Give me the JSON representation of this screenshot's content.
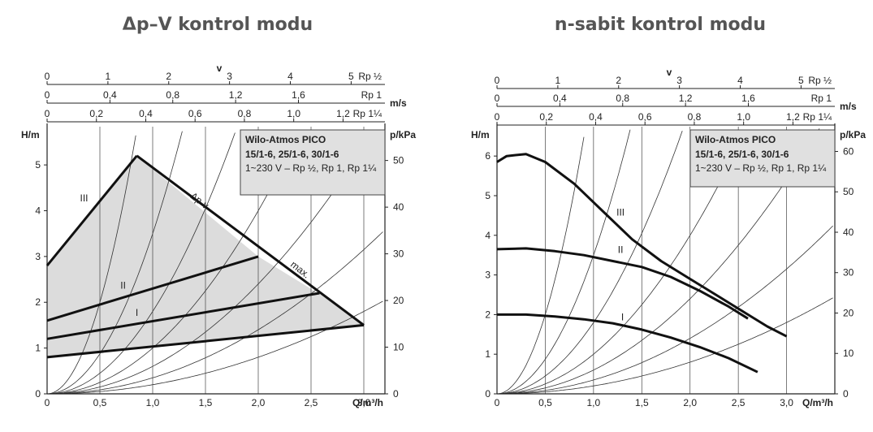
{
  "chart_data": [
    {
      "type": "line",
      "title": "Δp–V kontrol modu",
      "xlabel": "Q/m³/h",
      "ylabel": "H/m",
      "ylabel_right": "p/kPa",
      "x_ticks": [
        "0",
        "0,5",
        "1,0",
        "1,5",
        "2,0",
        "2,5",
        "3,0"
      ],
      "y_ticks": [
        "0",
        "1",
        "2",
        "3",
        "4",
        "5"
      ],
      "y_right_ticks": [
        "0",
        "10",
        "20",
        "30",
        "40",
        "50"
      ],
      "xlim": [
        0,
        3.2
      ],
      "ylim": [
        0,
        5.8
      ],
      "top_axes": [
        {
          "label": "Rp ½",
          "ticks": [
            "0",
            "1",
            "2",
            "3",
            "4",
            "5"
          ],
          "unit": "",
          "max_q": 3.2
        },
        {
          "label": "Rp 1",
          "ticks": [
            "0",
            "0,4",
            "0,8",
            "1,2",
            "1,6"
          ],
          "unit": "m/s",
          "max_q": 3.2
        },
        {
          "label": "Rp 1¼",
          "ticks": [
            "0",
            "0,2",
            "0,4",
            "0,6",
            "0,8",
            "1,0",
            "1,2"
          ],
          "unit": "",
          "max_q": 3.2
        }
      ],
      "v_label": "v",
      "info_box": {
        "title": "Wilo-Atmos PICO",
        "models": "15/1-6, 25/1-6, 30/1-6",
        "spec": "1~230 V – Rp ½, Rp 1, Rp 1¼"
      },
      "region": [
        [
          0,
          0.8
        ],
        [
          0,
          2.8
        ],
        [
          0.85,
          5.2
        ],
        [
          2.0,
          3.0
        ],
        [
          2.6,
          2.15
        ],
        [
          3.0,
          1.5
        ],
        [
          0,
          0.8
        ]
      ],
      "series": [
        {
          "name": "III",
          "values": [
            [
              0,
              2.8
            ],
            [
              0.85,
              5.2
            ]
          ],
          "label_at": [
            0.35,
            4.2
          ]
        },
        {
          "name": "II",
          "values": [
            [
              0,
              1.6
            ],
            [
              2.0,
              3.0
            ]
          ],
          "label_at": [
            0.72,
            2.3
          ]
        },
        {
          "name": "I",
          "values": [
            [
              0,
              1.2
            ],
            [
              2.58,
              2.2
            ]
          ],
          "label_at": [
            0.85,
            1.7
          ]
        },
        {
          "name": "",
          "values": [
            [
              0,
              0.8
            ],
            [
              3.0,
              1.5
            ]
          ]
        },
        {
          "name": "",
          "values": [
            [
              0.85,
              5.2
            ],
            [
              3.0,
              1.5
            ]
          ]
        }
      ],
      "curve_labels": [
        {
          "text": "Δp-v",
          "at": [
            1.35,
            4.3
          ]
        },
        {
          "text": "max.",
          "at": [
            2.3,
            2.8
          ]
        }
      ]
    },
    {
      "type": "line",
      "title": "n-sabit kontrol modu",
      "xlabel": "Q/m³/h",
      "ylabel": "H/m",
      "ylabel_right": "p/kPa",
      "x_ticks": [
        "0",
        "0,5",
        "1,0",
        "1,5",
        "2,0",
        "2,5",
        "3,0"
      ],
      "y_ticks": [
        "0",
        "1",
        "2",
        "3",
        "4",
        "5",
        "6"
      ],
      "y_right_ticks": [
        "0",
        "10",
        "20",
        "30",
        "40",
        "50",
        "60"
      ],
      "xlim": [
        0,
        3.5
      ],
      "ylim": [
        0,
        6.7
      ],
      "top_axes": [
        {
          "label": "Rp ½",
          "ticks": [
            "0",
            "1",
            "2",
            "3",
            "4",
            "5"
          ],
          "unit": "",
          "max_q": 3.5
        },
        {
          "label": "Rp 1",
          "ticks": [
            "0",
            "0,4",
            "0,8",
            "1,2",
            "1,6"
          ],
          "unit": "m/s",
          "max_q": 3.5
        },
        {
          "label": "Rp 1¼",
          "ticks": [
            "0",
            "0,2",
            "0,4",
            "0,6",
            "0,8",
            "1,0",
            "1,2"
          ],
          "unit": "",
          "max_q": 3.5
        }
      ],
      "v_label": "v",
      "info_box": {
        "title": "Wilo-Atmos PICO",
        "models": "15/1-6, 25/1-6, 30/1-6",
        "spec": "1~230 V – Rp ½, Rp 1, Rp 1¼"
      },
      "series": [
        {
          "name": "III",
          "values": [
            [
              0,
              5.85
            ],
            [
              0.1,
              6.0
            ],
            [
              0.3,
              6.05
            ],
            [
              0.5,
              5.85
            ],
            [
              0.8,
              5.3
            ],
            [
              1.1,
              4.6
            ],
            [
              1.4,
              3.9
            ],
            [
              1.7,
              3.35
            ],
            [
              2.0,
              2.9
            ],
            [
              2.3,
              2.45
            ],
            [
              2.6,
              2.0
            ],
            [
              2.8,
              1.7
            ],
            [
              3.0,
              1.45
            ]
          ],
          "label_at": [
            1.28,
            4.5
          ]
        },
        {
          "name": "II",
          "values": [
            [
              0,
              3.65
            ],
            [
              0.3,
              3.67
            ],
            [
              0.6,
              3.6
            ],
            [
              0.9,
              3.5
            ],
            [
              1.2,
              3.35
            ],
            [
              1.5,
              3.2
            ],
            [
              1.8,
              2.95
            ],
            [
              2.1,
              2.6
            ],
            [
              2.4,
              2.2
            ],
            [
              2.6,
              1.9
            ]
          ],
          "label_at": [
            1.28,
            3.55
          ]
        },
        {
          "name": "I",
          "values": [
            [
              0,
              2.0
            ],
            [
              0.3,
              2.0
            ],
            [
              0.6,
              1.95
            ],
            [
              0.9,
              1.88
            ],
            [
              1.2,
              1.78
            ],
            [
              1.5,
              1.62
            ],
            [
              1.8,
              1.42
            ],
            [
              2.1,
              1.18
            ],
            [
              2.4,
              0.9
            ],
            [
              2.7,
              0.55
            ]
          ],
          "label_at": [
            1.3,
            1.85
          ]
        }
      ]
    }
  ]
}
